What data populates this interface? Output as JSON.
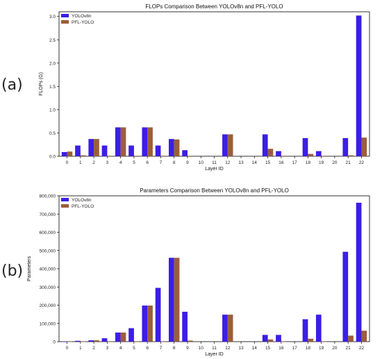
{
  "panel_labels": [
    "(a)",
    "(b)"
  ],
  "colors": {
    "yolo": "#3b1ee6",
    "pfl": "#9c5d3c"
  },
  "chart_data": [
    {
      "type": "bar",
      "title": "FLOPs Comparison Between YOLOv8n and PFL-YOLO",
      "xlabel": "Layer ID",
      "ylabel": "FLOPs (G)",
      "ylim": [
        0,
        3.1
      ],
      "yticks": [
        0.0,
        0.5,
        1.0,
        1.5,
        2.0,
        2.5,
        3.0
      ],
      "ytick_labels": [
        "0.0",
        "0.5",
        "1.0",
        "1.5",
        "2.0",
        "2.5",
        "3.0"
      ],
      "legend_position": "top-left",
      "categories": [
        "0",
        "1",
        "2",
        "3",
        "4",
        "5",
        "6",
        "7",
        "8",
        "9",
        "10",
        "11",
        "12",
        "13",
        "14",
        "15",
        "16",
        "17",
        "18",
        "19",
        "20",
        "21",
        "22"
      ],
      "series": [
        {
          "name": "YOLOv8n",
          "values": [
            0.09,
            0.23,
            0.37,
            0.23,
            0.62,
            0.23,
            0.62,
            0.23,
            0.37,
            0.13,
            0,
            0,
            0.47,
            0,
            0,
            0.47,
            0.11,
            0,
            0.39,
            0.11,
            0,
            0.39,
            3.02
          ]
        },
        {
          "name": "PFL-YOLO",
          "values": [
            0.1,
            0.02,
            0.37,
            0.01,
            0.62,
            0.01,
            0.62,
            0.01,
            0.36,
            0.01,
            0,
            0,
            0.47,
            0,
            0,
            0.16,
            0.01,
            0,
            0.05,
            0.01,
            0,
            0.02,
            0.4
          ]
        }
      ]
    },
    {
      "type": "bar",
      "title": "Parameters Comparison Between YOLOv8n and PFL-YOLO",
      "xlabel": "Layer ID",
      "ylabel": "Parameters",
      "ylim": [
        0,
        800000
      ],
      "yticks": [
        0,
        100000,
        200000,
        300000,
        400000,
        500000,
        600000,
        700000,
        800000
      ],
      "ytick_labels": [
        "0",
        "100,000",
        "200,000",
        "300,000",
        "400,000",
        "500,000",
        "600,000",
        "700,000",
        "800,000"
      ],
      "legend_position": "top-left",
      "categories": [
        "0",
        "1",
        "2",
        "3",
        "4",
        "5",
        "6",
        "7",
        "8",
        "9",
        "10",
        "11",
        "12",
        "13",
        "14",
        "15",
        "16",
        "17",
        "18",
        "19",
        "20",
        "21",
        "22"
      ],
      "series": [
        {
          "name": "YOLOv8n",
          "values": [
            400,
            4600,
            7400,
            18600,
            50000,
            74000,
            198000,
            295000,
            460000,
            164000,
            0,
            0,
            148000,
            0,
            0,
            37000,
            37000,
            0,
            123000,
            148000,
            0,
            493000,
            762000
          ]
        },
        {
          "name": "PFL-YOLO",
          "values": [
            500,
            800,
            7400,
            300,
            50000,
            300,
            198000,
            300,
            460000,
            6000,
            0,
            0,
            148000,
            0,
            0,
            12000,
            300,
            0,
            16000,
            300,
            0,
            33000,
            60000
          ]
        }
      ]
    }
  ]
}
